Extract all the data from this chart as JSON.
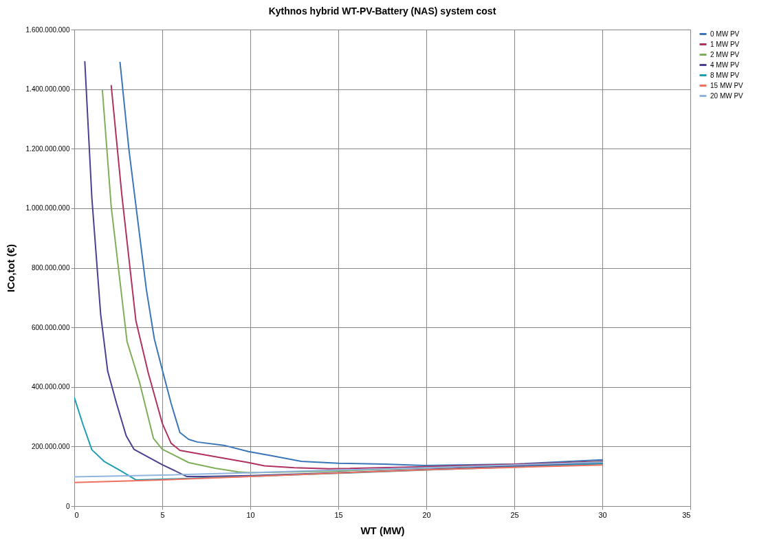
{
  "chart_data": {
    "type": "line",
    "title": "Kythnos hybrid WT-PV-Battery (NAS) system cost",
    "xlabel": "WT (MW)",
    "ylabel": "ICo,tot  (€)",
    "xlim": [
      0,
      35
    ],
    "xticks": [
      0,
      5,
      10,
      15,
      20,
      25,
      30,
      35
    ],
    "ylim": [
      0,
      1600000000
    ],
    "yticks": [
      {
        "value": 0,
        "label": "0"
      },
      {
        "value": 200000000,
        "label": "200.000.000"
      },
      {
        "value": 400000000,
        "label": "400.000.000"
      },
      {
        "value": 600000000,
        "label": "600.000.000"
      },
      {
        "value": 800000000,
        "label": "800.000.000"
      },
      {
        "value": 1000000000,
        "label": "1.000.000.000"
      },
      {
        "value": 1200000000,
        "label": "1.200.000.000"
      },
      {
        "value": 1400000000,
        "label": "1.400.000.000"
      },
      {
        "value": 1600000000,
        "label": "1.600.000.000"
      }
    ],
    "grid": true,
    "legend": "right",
    "marker": "none",
    "line_style": "solid",
    "series": [
      {
        "name": "0 MW PV",
        "color": "#3a75b8",
        "x": [
          2.6,
          3.1,
          4.1,
          4.55,
          5,
          5.5,
          6,
          6.5,
          7,
          8.5,
          9.9,
          11.2,
          12.9,
          15,
          17.6,
          19.9,
          25,
          30
        ],
        "values": [
          1490000000,
          1200000000,
          726000000,
          561000000,
          458000000,
          345000000,
          247000000,
          224000000,
          215000000,
          204000000,
          183000000,
          169000000,
          150000000,
          144000000,
          141000000,
          136000000,
          141000000,
          155000000
        ]
      },
      {
        "name": "1 MW PV",
        "color": "#b03060",
        "x": [
          2.1,
          2.7,
          3.5,
          4.2,
          5,
          5.5,
          6,
          7.3,
          9.9,
          10.8,
          12.5,
          14.5,
          20,
          25,
          30
        ],
        "values": [
          1412000000,
          1046000000,
          623000000,
          448000000,
          278000000,
          211000000,
          187000000,
          173000000,
          146000000,
          135000000,
          129000000,
          125000000,
          132000000,
          140000000,
          150000000
        ]
      },
      {
        "name": "2 MW PV",
        "color": "#7fae5a",
        "x": [
          1.6,
          2.1,
          3,
          3.7,
          4.5,
          5,
          6.5,
          8,
          9.3,
          10,
          15,
          20,
          25,
          30
        ],
        "values": [
          1395000000,
          1005000000,
          552000000,
          418000000,
          227000000,
          191000000,
          146000000,
          127000000,
          115000000,
          112000000,
          118000000,
          128000000,
          137000000,
          148000000
        ]
      },
      {
        "name": "4 MW PV",
        "color": "#4a3f90",
        "x": [
          0.6,
          1,
          1.5,
          1.9,
          2.4,
          2.95,
          3.4,
          5,
          6.4,
          7.3,
          10,
          15,
          20,
          25,
          30
        ],
        "values": [
          1492000000,
          1035000000,
          644000000,
          453000000,
          345000000,
          236000000,
          190000000,
          139000000,
          99000000,
          99000000,
          102000000,
          112000000,
          123000000,
          134000000,
          145000000
        ]
      },
      {
        "name": "8 MW PV",
        "color": "#1f9db3",
        "x": [
          0,
          0.5,
          1,
          1.7,
          2.6,
          3.5,
          5,
          10,
          15,
          20,
          25,
          30
        ],
        "values": [
          365000000,
          273000000,
          189000000,
          150000000,
          120000000,
          88000000,
          90000000,
          100000000,
          110000000,
          121000000,
          131000000,
          142000000
        ]
      },
      {
        "name": "15 MW PV",
        "color": "#f07060",
        "x": [
          0,
          5,
          10,
          15,
          20,
          25,
          30
        ],
        "values": [
          79000000,
          88000000,
          99000000,
          111000000,
          122000000,
          130000000,
          138000000
        ]
      },
      {
        "name": "20 MW PV",
        "color": "#8fb4e0",
        "x": [
          0,
          5,
          10,
          15,
          20,
          25,
          30
        ],
        "values": [
          98000000,
          104000000,
          112000000,
          121000000,
          129000000,
          138000000,
          147000000
        ]
      }
    ]
  }
}
